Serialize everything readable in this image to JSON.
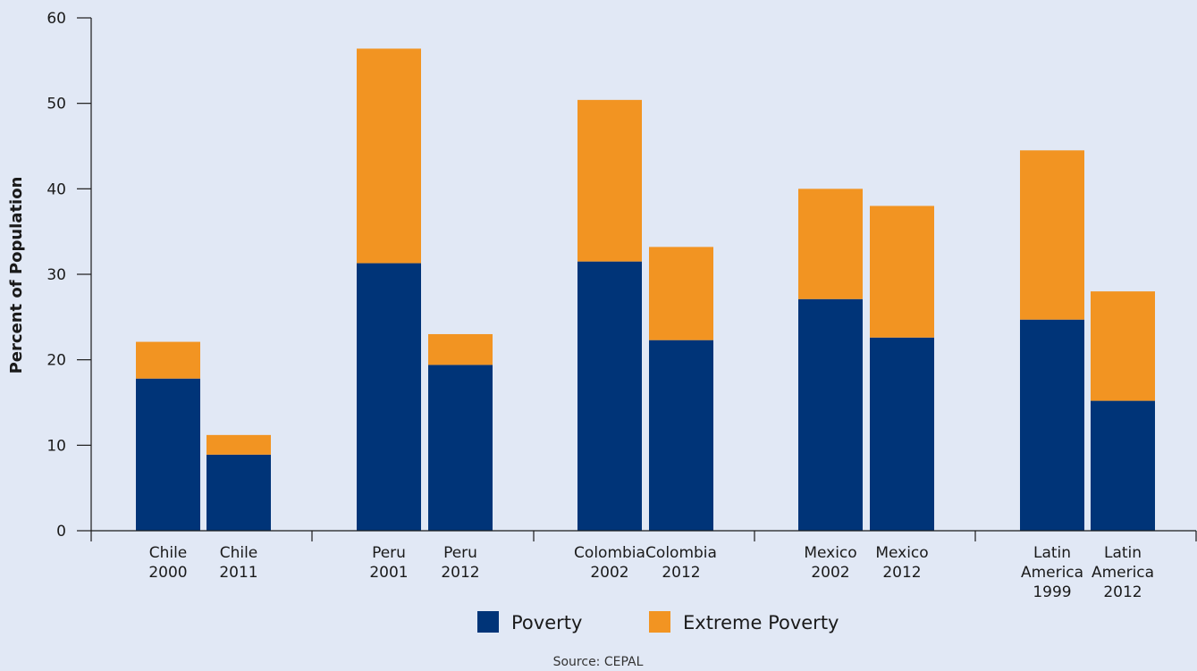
{
  "chart_data": {
    "type": "bar",
    "stacked": true,
    "categories": [
      [
        "Chile",
        "2000"
      ],
      [
        "Chile",
        "2011"
      ],
      [
        "Peru",
        "2001"
      ],
      [
        "Peru",
        "2012"
      ],
      [
        "Colombia",
        "2002"
      ],
      [
        "Colombia",
        "2012"
      ],
      [
        "Mexico",
        "2002"
      ],
      [
        "Mexico",
        "2012"
      ],
      [
        "Latin",
        "America",
        "1999"
      ],
      [
        "Latin",
        "America",
        "2012"
      ]
    ],
    "series": [
      {
        "name": "Poverty",
        "color": "#003478",
        "values": [
          17.8,
          8.9,
          31.3,
          19.4,
          31.5,
          22.3,
          27.1,
          22.6,
          24.7,
          15.2
        ]
      },
      {
        "name": "Extreme Poverty",
        "color": "#f29422",
        "values": [
          4.3,
          2.3,
          25.1,
          3.6,
          18.9,
          10.9,
          12.9,
          15.4,
          19.8,
          12.8
        ]
      }
    ],
    "ylabel": "Percent of Population",
    "ylim": [
      0,
      60
    ],
    "yticks": [
      0,
      10,
      20,
      30,
      40,
      50,
      60
    ],
    "grid": false,
    "legend_placement": "bottom-center"
  },
  "source_text": "Source: CEPAL"
}
